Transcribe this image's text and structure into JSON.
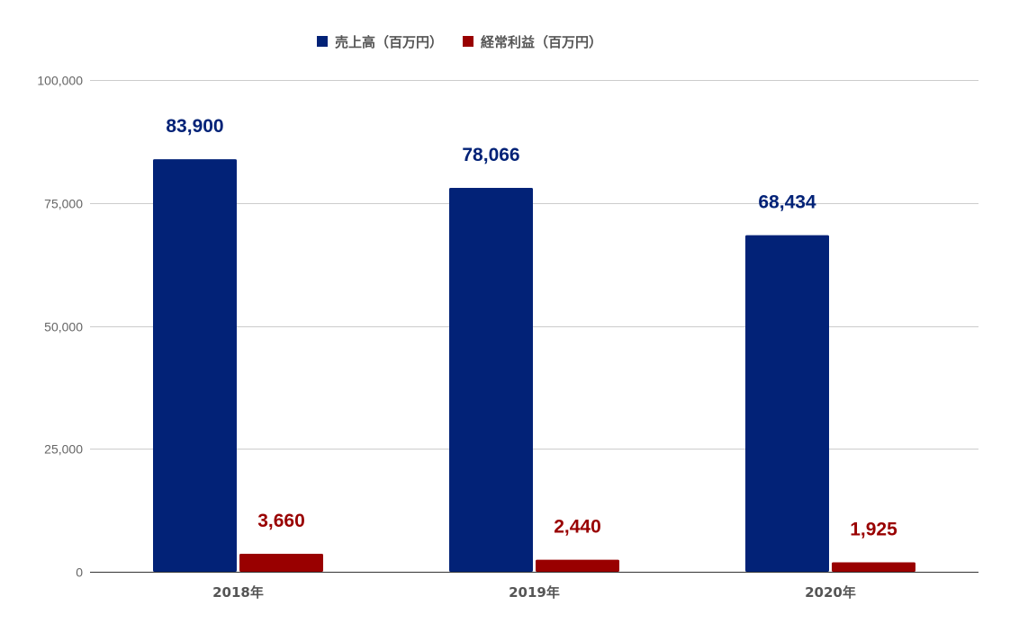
{
  "chart_data": {
    "type": "bar",
    "title": "",
    "xlabel": "",
    "ylabel": "",
    "categories": [
      "2018年",
      "2019年",
      "2020年"
    ],
    "series": [
      {
        "name": "売上高（百万円）",
        "color": "#022277",
        "values": [
          83900,
          78066,
          68434
        ],
        "labels": [
          "83,900",
          "78,066",
          "68,434"
        ]
      },
      {
        "name": "経常利益（百万円）",
        "color": "#990000",
        "values": [
          3660,
          2440,
          1925
        ],
        "labels": [
          "3,660",
          "2,440",
          "1,925"
        ]
      }
    ],
    "ylim": [
      0,
      100000
    ],
    "yticks": [
      0,
      25000,
      50000,
      75000,
      100000
    ],
    "ytick_labels": [
      "0",
      "25,000",
      "50,000",
      "75,000",
      "100,000"
    ],
    "grid": true,
    "legend_position": "top-center"
  }
}
